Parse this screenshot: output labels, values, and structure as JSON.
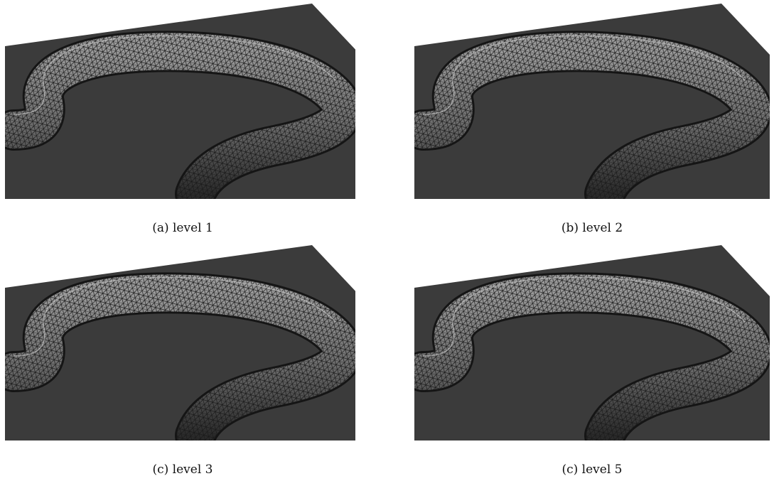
{
  "figure": {
    "panels": [
      {
        "caption": "(a) level 1"
      },
      {
        "caption": "(b) level 2"
      },
      {
        "caption": "(c) level 3"
      },
      {
        "caption": "(c) level 5"
      }
    ]
  }
}
